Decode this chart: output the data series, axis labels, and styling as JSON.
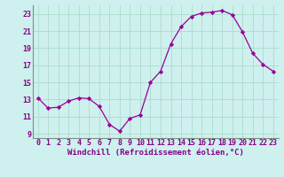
{
  "x": [
    0,
    1,
    2,
    3,
    4,
    5,
    6,
    7,
    8,
    9,
    10,
    11,
    12,
    13,
    14,
    15,
    16,
    17,
    18,
    19,
    20,
    21,
    22,
    23
  ],
  "y": [
    13.2,
    12.0,
    12.1,
    12.8,
    13.2,
    13.1,
    12.2,
    10.1,
    9.3,
    10.8,
    11.2,
    15.0,
    16.3,
    19.5,
    21.5,
    22.7,
    23.1,
    23.2,
    23.4,
    22.9,
    20.9,
    18.4,
    17.1,
    16.3
  ],
  "line_color": "#990099",
  "marker": "D",
  "marker_size": 2.2,
  "bg_color": "#cef0ee",
  "grid_color": "#aaddcc",
  "xlabel": "Windchill (Refroidissement éolien,°C)",
  "ylim": [
    8.5,
    24.0
  ],
  "xlim": [
    -0.5,
    23.5
  ],
  "yticks": [
    9,
    11,
    13,
    15,
    17,
    19,
    21,
    23
  ],
  "xticks": [
    0,
    1,
    2,
    3,
    4,
    5,
    6,
    7,
    8,
    9,
    10,
    11,
    12,
    13,
    14,
    15,
    16,
    17,
    18,
    19,
    20,
    21,
    22,
    23
  ],
  "label_fontsize": 6.5,
  "tick_fontsize": 6.0,
  "tick_color": "#880088"
}
